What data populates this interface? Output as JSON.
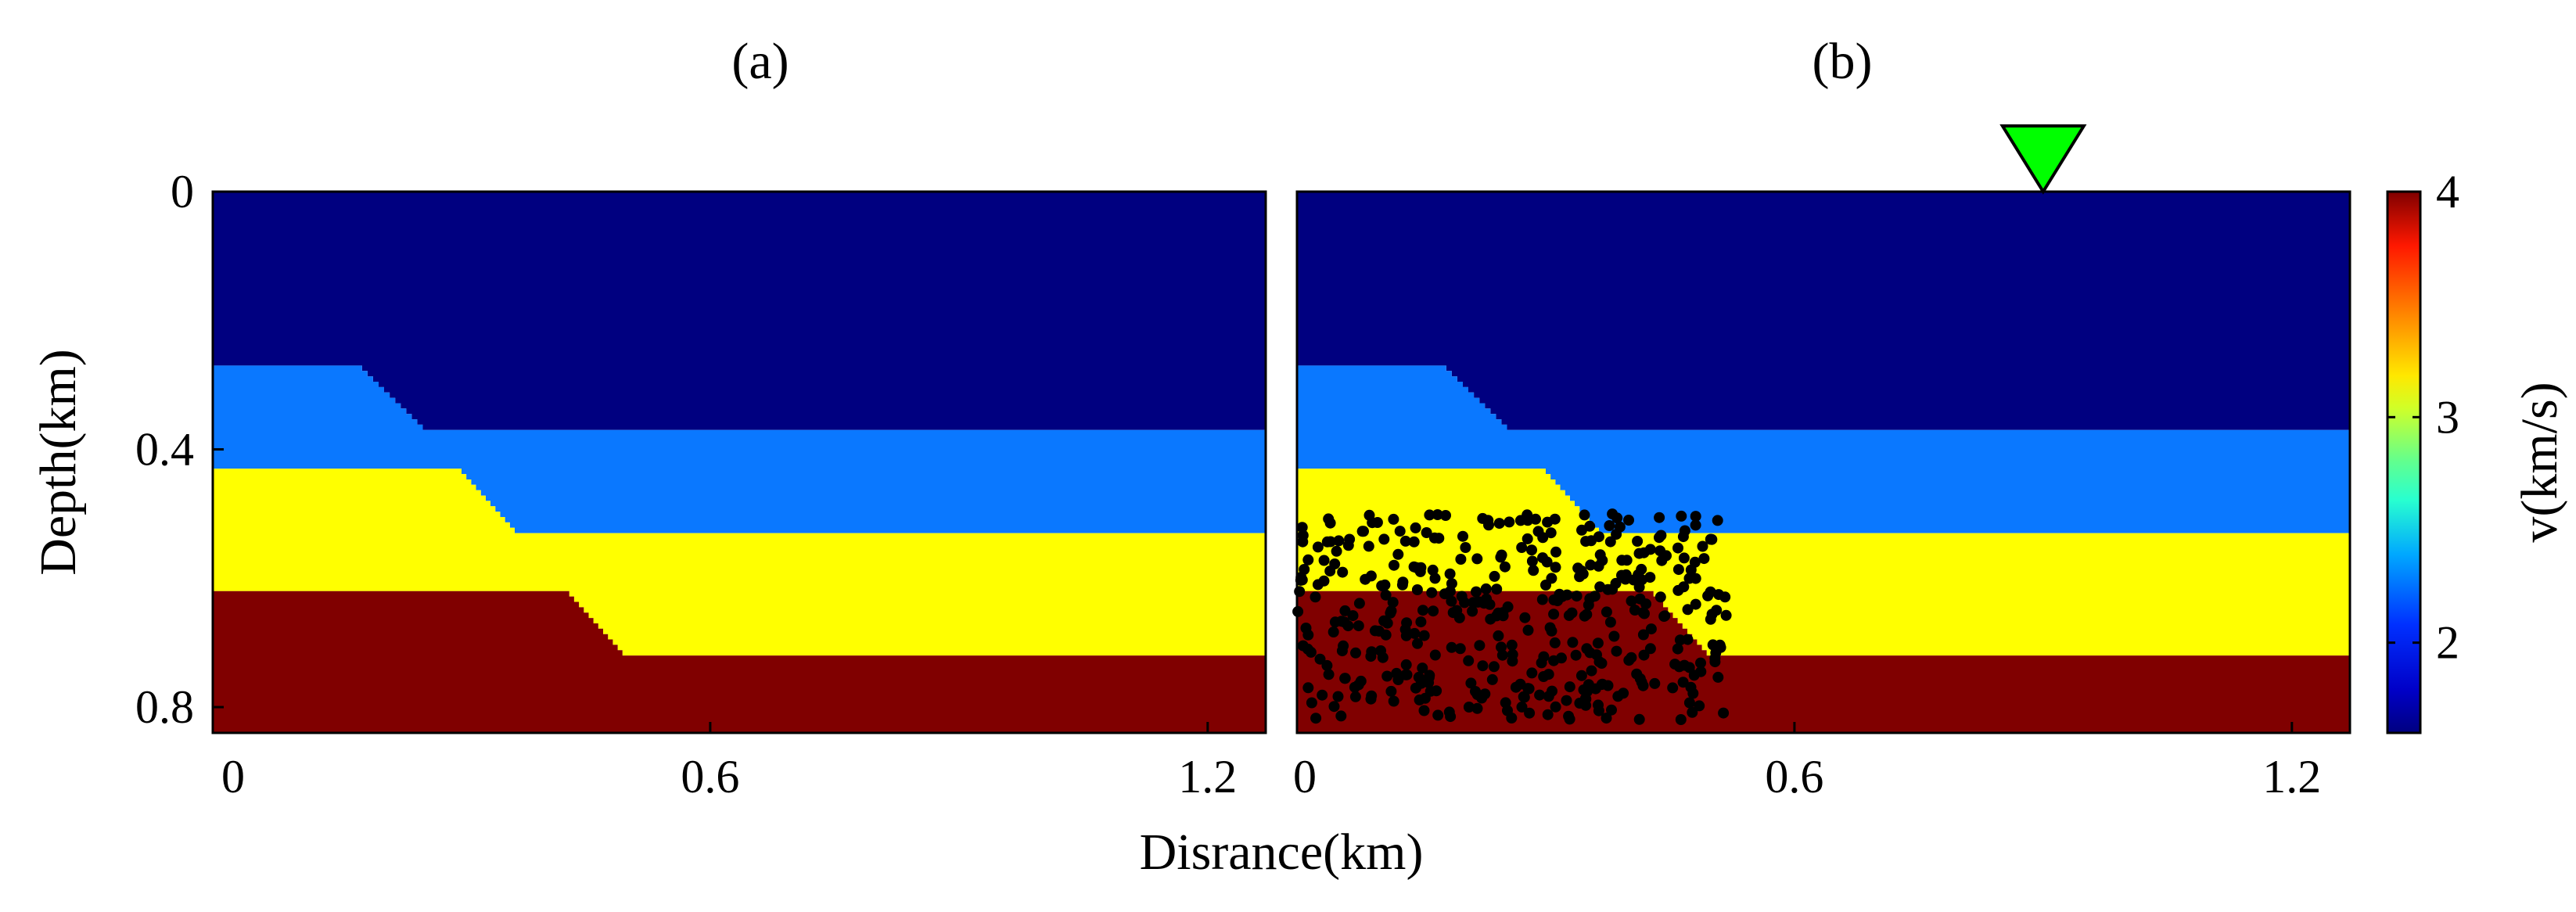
{
  "figure": {
    "xlabel": "Disrance(km)",
    "ylabel": "Depth(km)",
    "colorbar_label": "v(km/s)"
  },
  "colors": {
    "layer_1": "#000080",
    "layer_2": "#0a78ff",
    "layer_3": "#ffff00",
    "layer_4": "#800000",
    "scatter_points": "#000000",
    "receiver_marker": "#00ff00"
  },
  "chart_data": [
    {
      "type": "heatmap",
      "title": "(a)",
      "x_ticks": [
        "0",
        "0.6",
        "1.2"
      ],
      "y_ticks": [
        "0",
        "0.4",
        "0.8"
      ],
      "xlim": [
        0,
        1.27
      ],
      "ylim": [
        0.84,
        0
      ],
      "layers": [
        {
          "velocity": 1.5,
          "color": "#000080"
        },
        {
          "velocity": 2.1,
          "color": "#0a78ff"
        },
        {
          "velocity": 3.0,
          "color": "#ffff00"
        },
        {
          "velocity": 4.0,
          "color": "#800000"
        }
      ],
      "interfaces": [
        {
          "shallow_depth": 0.27,
          "deep_depth": 0.37,
          "slope_start_x": 0.18,
          "slope_end_x": 0.26
        },
        {
          "shallow_depth": 0.43,
          "deep_depth": 0.53,
          "slope_start_x": 0.3,
          "slope_end_x": 0.37
        },
        {
          "shallow_depth": 0.62,
          "deep_depth": 0.72,
          "slope_start_x": 0.43,
          "slope_end_x": 0.5
        }
      ]
    },
    {
      "type": "heatmap",
      "title": "(b)",
      "x_ticks": [
        "0",
        "0.6",
        "1.2"
      ],
      "xlim": [
        0,
        1.27
      ],
      "ylim": [
        0.84,
        0
      ],
      "layers": [
        {
          "velocity": 1.5,
          "color": "#000080"
        },
        {
          "velocity": 2.1,
          "color": "#0a78ff"
        },
        {
          "velocity": 3.0,
          "color": "#ffff00"
        },
        {
          "velocity": 4.0,
          "color": "#800000"
        }
      ],
      "interfaces": [
        {
          "shallow_depth": 0.27,
          "deep_depth": 0.37,
          "slope_start_x": 0.18,
          "slope_end_x": 0.26
        },
        {
          "shallow_depth": 0.43,
          "deep_depth": 0.53,
          "slope_start_x": 0.3,
          "slope_end_x": 0.37
        },
        {
          "shallow_depth": 0.62,
          "deep_depth": 0.72,
          "slope_start_x": 0.43,
          "slope_end_x": 0.5
        }
      ],
      "scatter_region": {
        "x": [
          0,
          0.52
        ],
        "y": [
          0.5,
          0.82
        ],
        "point_count": 420
      },
      "receiver_marker": {
        "x": 0.9,
        "y": 0
      }
    }
  ],
  "colorbar": {
    "ticks": [
      "2",
      "3",
      "4"
    ],
    "tick_values": [
      2,
      3,
      4
    ],
    "range": [
      1.6,
      4.0
    ],
    "colormap": "jet"
  }
}
